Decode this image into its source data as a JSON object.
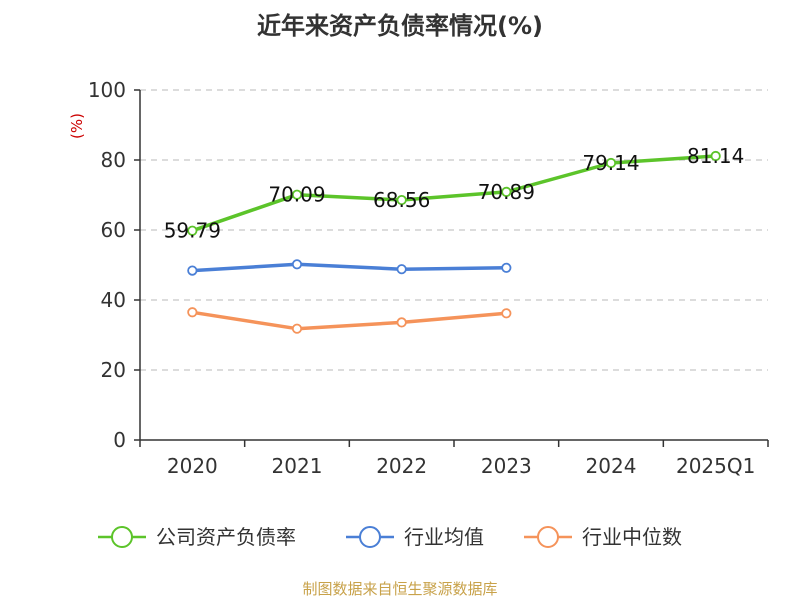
{
  "chart_data": {
    "type": "line",
    "title": "近年来资产负债率情况(%)",
    "unit_label": "(%)",
    "categories": [
      "2020",
      "2021",
      "2022",
      "2023",
      "2024",
      "2025Q1"
    ],
    "ylim": [
      0,
      100
    ],
    "yticks": [
      0,
      20,
      40,
      60,
      80,
      100
    ],
    "grid": true,
    "legend_position": "bottom",
    "series": [
      {
        "name": "公司资产负债率",
        "color": "#5cc42a",
        "values": [
          59.79,
          70.09,
          68.56,
          70.89,
          79.14,
          81.14
        ],
        "labels": [
          "59.79",
          "70.09",
          "68.56",
          "70.89",
          "79.14",
          "81.14"
        ]
      },
      {
        "name": "行业均值",
        "color": "#4a7fd6",
        "values": [
          48.4,
          50.2,
          48.8,
          49.2,
          null,
          null
        ]
      },
      {
        "name": "行业中位数",
        "color": "#f5935a",
        "values": [
          36.5,
          31.8,
          33.6,
          36.2,
          null,
          null
        ]
      }
    ]
  },
  "source": "制图数据来自恒生聚源数据库"
}
